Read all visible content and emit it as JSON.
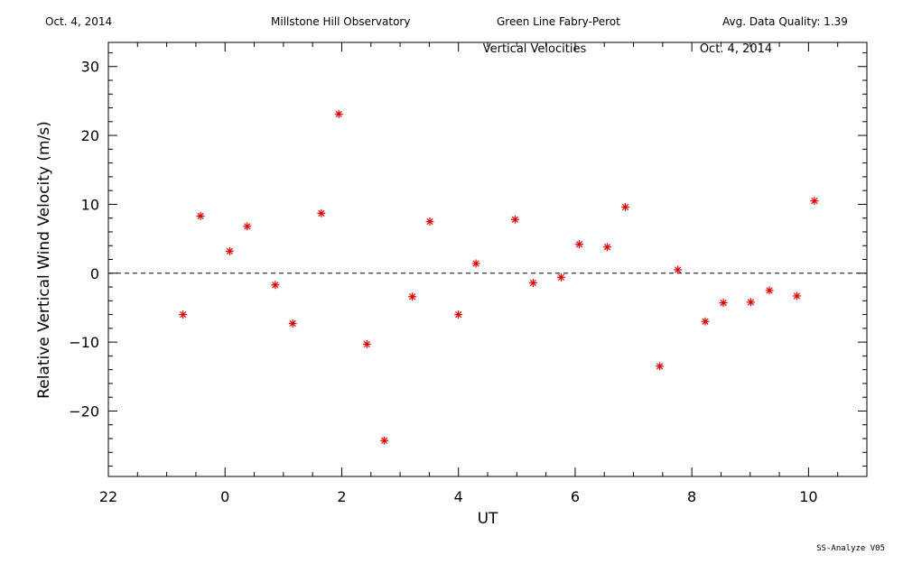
{
  "header": {
    "date": "Oct. 4, 2014",
    "observatory": "Millstone Hill Observatory",
    "instrument": "Green Line Fabry-Perot",
    "quality": "Avg. Data Quality: 1.39"
  },
  "footer": {
    "software": "SS-Analyze V05"
  },
  "chart_data": {
    "type": "scatter",
    "title": "Vertical Velocities",
    "date_label": "Oct. 4, 2014",
    "xlabel": "UT",
    "ylabel": "Relative Vertical Wind Velocity (m/s)",
    "xlim": [
      22.0,
      35.0
    ],
    "ylim": [
      -29.5,
      33.5
    ],
    "x_ticks": [
      {
        "value": 22,
        "label": "22"
      },
      {
        "value": 24,
        "label": "0"
      },
      {
        "value": 26,
        "label": "2"
      },
      {
        "value": 28,
        "label": "4"
      },
      {
        "value": 30,
        "label": "6"
      },
      {
        "value": 32,
        "label": "8"
      },
      {
        "value": 34,
        "label": "10"
      }
    ],
    "y_ticks": [
      {
        "value": -20,
        "label": "−20"
      },
      {
        "value": -10,
        "label": "−10"
      },
      {
        "value": 0,
        "label": "0"
      },
      {
        "value": 10,
        "label": "10"
      },
      {
        "value": 20,
        "label": "20"
      },
      {
        "value": 30,
        "label": "30"
      }
    ],
    "reference_line": 0,
    "marker": "asterisk",
    "color": "#e00000",
    "x": [
      23.28,
      23.58,
      24.08,
      24.38,
      24.86,
      25.16,
      25.65,
      25.95,
      26.43,
      26.73,
      27.21,
      27.51,
      28.0,
      28.3,
      28.97,
      29.28,
      29.76,
      30.07,
      30.55,
      30.86,
      31.45,
      31.76,
      32.23,
      32.54,
      33.01,
      33.33,
      33.8,
      34.1
    ],
    "y": [
      -6.0,
      8.3,
      3.2,
      6.8,
      -1.7,
      -7.3,
      8.7,
      23.1,
      -10.3,
      -24.3,
      -3.4,
      7.5,
      -6.0,
      1.4,
      7.8,
      -1.4,
      -0.6,
      4.2,
      3.8,
      9.6,
      -13.5,
      0.5,
      -7.0,
      -4.3,
      -4.2,
      -2.5,
      -3.3,
      10.5
    ]
  }
}
